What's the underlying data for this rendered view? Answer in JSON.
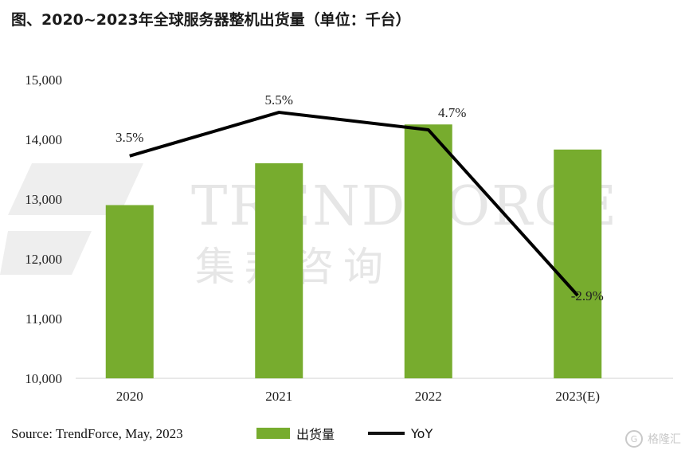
{
  "title": "图、2020~2023年全球服务器整机出货量（单位：千台）",
  "source": "Source: TrendForce, May, 2023",
  "watermark": {
    "en": "TRENDFORCE",
    "cn": "集邦咨询"
  },
  "badge": {
    "icon": "g-logo-icon",
    "text": "格隆汇"
  },
  "colors": {
    "bar": "#77ac2e",
    "line": "#000000",
    "watermark": "#e6e6e6"
  },
  "chart_data": {
    "type": "bar+line",
    "categories": [
      "2020",
      "2021",
      "2022",
      "2023(E)"
    ],
    "series": [
      {
        "name": "出货量",
        "type": "bar",
        "values": [
          12900,
          13600,
          14250,
          13830
        ]
      },
      {
        "name": "YoY",
        "type": "line",
        "values": [
          3.5,
          5.5,
          4.7,
          -2.9
        ],
        "labels": [
          "3.5%",
          "5.5%",
          "4.7%",
          "-2.9%"
        ]
      }
    ],
    "y_ticks": [
      "10,000",
      "11,000",
      "12,000",
      "13,000",
      "14,000",
      "15,000"
    ],
    "ylim": [
      10000,
      15000
    ],
    "y2lim": [
      -6.7,
      7.0
    ],
    "grid": false,
    "legend": "bottom"
  }
}
